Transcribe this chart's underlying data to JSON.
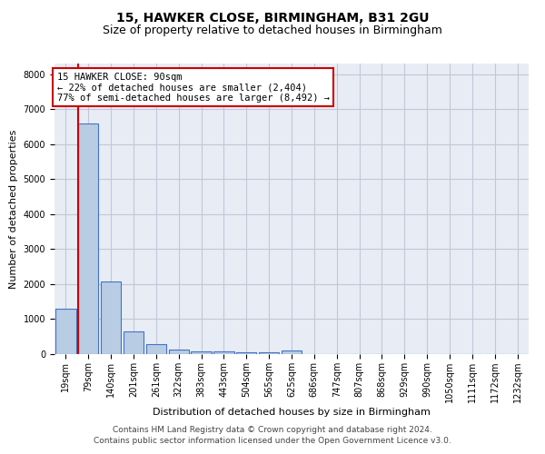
{
  "title1": "15, HAWKER CLOSE, BIRMINGHAM, B31 2GU",
  "title2": "Size of property relative to detached houses in Birmingham",
  "xlabel": "Distribution of detached houses by size in Birmingham",
  "ylabel": "Number of detached properties",
  "categories": [
    "19sqm",
    "79sqm",
    "140sqm",
    "201sqm",
    "261sqm",
    "322sqm",
    "383sqm",
    "443sqm",
    "504sqm",
    "565sqm",
    "625sqm",
    "686sqm",
    "747sqm",
    "807sqm",
    "868sqm",
    "929sqm",
    "990sqm",
    "1050sqm",
    "1111sqm",
    "1172sqm",
    "1232sqm"
  ],
  "values": [
    1300,
    6600,
    2080,
    650,
    280,
    130,
    90,
    70,
    60,
    60,
    110,
    0,
    0,
    0,
    0,
    0,
    0,
    0,
    0,
    0,
    0
  ],
  "bar_color": "#b8cce4",
  "bar_edge_color": "#4472c4",
  "annotation_title": "15 HAWKER CLOSE: 90sqm",
  "annotation_line1": "← 22% of detached houses are smaller (2,404)",
  "annotation_line2": "77% of semi-detached houses are larger (8,492) →",
  "annotation_box_color": "#ffffff",
  "annotation_border_color": "#cc0000",
  "property_line_color": "#cc0000",
  "ylim": [
    0,
    8300
  ],
  "yticks": [
    0,
    1000,
    2000,
    3000,
    4000,
    5000,
    6000,
    7000,
    8000
  ],
  "grid_color": "#c0c8d8",
  "bg_color": "#e8edf5",
  "footer1": "Contains HM Land Registry data © Crown copyright and database right 2024.",
  "footer2": "Contains public sector information licensed under the Open Government Licence v3.0.",
  "title_fontsize": 10,
  "subtitle_fontsize": 9,
  "axis_label_fontsize": 8,
  "tick_fontsize": 7,
  "footer_fontsize": 6.5,
  "annotation_fontsize": 7.5
}
